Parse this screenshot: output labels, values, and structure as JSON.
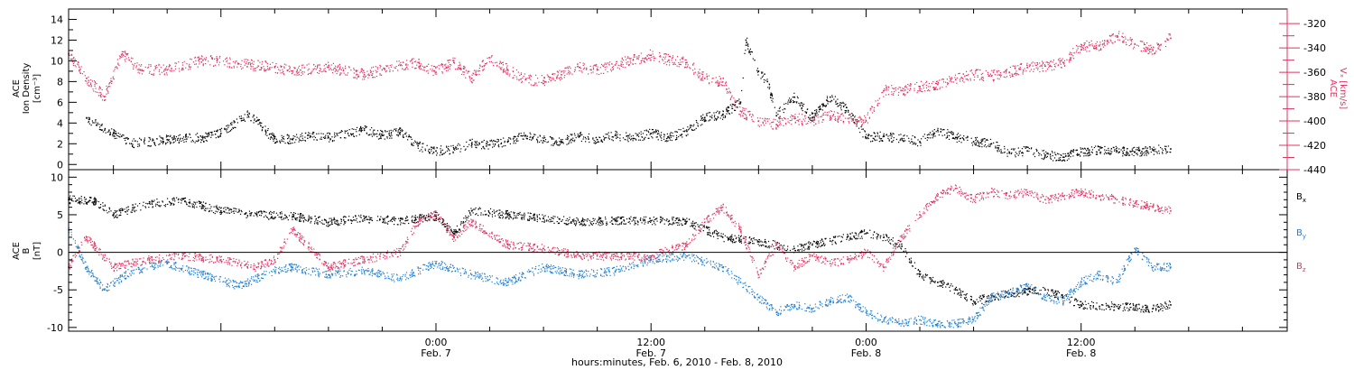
{
  "colors": {
    "black": "#000000",
    "pink": "#e0335f",
    "blue": "#1f7fd6"
  },
  "x_axis": {
    "title": "hours:minutes, Feb.  6, 2010 - Feb.  8, 2010",
    "range_hours": [
      -20.5,
      47.5
    ],
    "major_ticks": [
      {
        "hour": 0,
        "time": "0:00",
        "date": "Feb. 7"
      },
      {
        "hour": 12,
        "time": "12:00",
        "date": "Feb. 7"
      },
      {
        "hour": 24,
        "time": "0:00",
        "date": "Feb. 8"
      },
      {
        "hour": 36,
        "time": "12:00",
        "date": "Feb. 8"
      }
    ]
  },
  "chart_data": [
    {
      "type": "scatter",
      "panel": "top",
      "ylabel_left": {
        "line1": "ACE",
        "line2": "Ion Density",
        "units": "[cm⁻³]"
      },
      "ylabel_right": {
        "line1": "ACE",
        "line2": "Vₓ [km/s]"
      },
      "ylim_left": [
        -0.5,
        15
      ],
      "yticks_left": [
        "0",
        "2",
        "4",
        "6",
        "8",
        "10",
        "12",
        "14"
      ],
      "ylim_right": [
        -440,
        -308
      ],
      "yticks_right": [
        "-440",
        "-420",
        "-400",
        "-380",
        "-360",
        "-340",
        "-320"
      ],
      "series": [
        {
          "axis": "left",
          "color": "black",
          "x": [
            -19.5,
            -18,
            -17,
            -15,
            -13,
            -12,
            -10.5,
            -10,
            -9.5,
            -9,
            -8,
            -7,
            -6,
            -4,
            -3,
            -2,
            -1,
            0,
            1,
            2,
            3,
            4,
            5,
            6,
            7,
            8,
            9,
            10,
            11,
            12,
            13,
            14,
            15,
            16,
            17,
            17.3,
            18,
            18.5,
            19,
            20,
            21,
            22,
            23,
            24,
            25,
            26,
            27,
            28,
            29,
            30,
            31,
            32,
            33,
            34,
            35,
            36,
            37,
            38,
            39,
            40,
            41
          ],
          "y": [
            4.5,
            3,
            2,
            2.4,
            2.6,
            3,
            4.8,
            4.2,
            3.2,
            2.5,
            2.4,
            2.7,
            2.6,
            3.3,
            2.8,
            3.1,
            1.8,
            1.3,
            1.5,
            2,
            1.9,
            2.2,
            2.8,
            2.3,
            2.2,
            2.7,
            2.4,
            2.8,
            2.5,
            3,
            2.6,
            3.2,
            4.5,
            4.8,
            6,
            12,
            9,
            8,
            4.7,
            6.5,
            4.5,
            6.5,
            5.2,
            2.6,
            2.7,
            2.5,
            2.2,
            3.3,
            2.6,
            2.2,
            2,
            1.1,
            1.3,
            0.9,
            0.7,
            1.2,
            1.4,
            1.3,
            1.2,
            1.4,
            1.5
          ]
        },
        {
          "axis": "right",
          "color": "pink",
          "x": [
            -20.5,
            -19.5,
            -18.5,
            -17.5,
            -16.5,
            -15,
            -13,
            -11,
            -9,
            -8,
            -6,
            -4,
            -3,
            -1,
            0,
            1,
            2,
            3,
            4,
            5,
            6,
            7,
            8,
            9,
            10,
            11,
            12,
            13,
            14,
            15,
            16,
            17,
            18,
            19,
            20,
            21,
            22,
            23,
            24,
            25,
            26,
            27,
            28,
            29,
            30,
            31,
            32,
            33,
            34,
            35,
            36,
            37,
            38,
            39,
            40,
            41
          ],
          "y": [
            -345,
            -365,
            -380,
            -345,
            -358,
            -358,
            -350,
            -353,
            -356,
            -359,
            -356,
            -362,
            -358,
            -352,
            -360,
            -352,
            -365,
            -348,
            -358,
            -366,
            -367,
            -362,
            -356,
            -358,
            -354,
            -350,
            -346,
            -350,
            -352,
            -365,
            -368,
            -392,
            -400,
            -403,
            -398,
            -400,
            -396,
            -398,
            -400,
            -375,
            -375,
            -372,
            -370,
            -366,
            -362,
            -363,
            -360,
            -356,
            -355,
            -352,
            -339,
            -338,
            -330,
            -337,
            -342,
            -332
          ]
        }
      ]
    },
    {
      "type": "scatter",
      "panel": "bottom",
      "ylabel_left": {
        "line1": "ACE",
        "line2": "B",
        "units": "[nT]"
      },
      "ylim": [
        -10.5,
        11
      ],
      "yticks": [
        "10",
        "5",
        "0",
        "-5",
        "-10"
      ],
      "series": [
        {
          "name": "Bx",
          "color": "black",
          "x": [
            -20.5,
            -19,
            -18,
            -16,
            -14,
            -12,
            -10,
            -8,
            -6,
            -4,
            -2,
            0,
            1,
            2,
            4,
            6,
            8,
            10,
            12,
            14,
            16,
            18,
            20,
            22,
            24,
            25,
            26,
            27,
            28,
            29,
            30,
            31,
            32,
            34,
            36,
            38,
            40,
            41
          ],
          "y": [
            7,
            6.8,
            5,
            6.5,
            6.8,
            5.5,
            5,
            4.8,
            4,
            4.5,
            4.2,
            4.8,
            2.5,
            5.5,
            5,
            4.5,
            4,
            4.2,
            4.2,
            4.1,
            2,
            1.4,
            0.5,
            1.5,
            2.5,
            2,
            0.8,
            -3,
            -4,
            -5,
            -6.5,
            -6,
            -5.5,
            -5,
            -7,
            -7.2,
            -7.5,
            -7
          ]
        },
        {
          "name": "By",
          "color": "blue",
          "x": [
            -20.5,
            -19.5,
            -18.5,
            -17,
            -15,
            -13,
            -11,
            -9,
            -8,
            -6,
            -4,
            -2,
            0,
            2,
            4,
            6,
            8,
            10,
            12,
            14,
            16,
            17,
            18,
            19,
            20,
            21,
            22,
            23,
            24,
            25,
            26,
            27,
            28,
            29,
            30,
            31,
            32,
            33,
            34,
            35,
            36,
            37,
            38,
            39,
            40,
            41
          ],
          "y": [
            3,
            -2,
            -5,
            -2.5,
            -1.5,
            -3,
            -4.5,
            -2.5,
            -2,
            -3,
            -2.5,
            -3.5,
            -1.5,
            -3,
            -4,
            -2,
            -3,
            -2.5,
            -1,
            -0.5,
            -2,
            -4,
            -6,
            -8,
            -7,
            -7.5,
            -6.5,
            -6,
            -8,
            -9,
            -9.5,
            -9,
            -9.5,
            -9.5,
            -9,
            -6,
            -5.5,
            -4.5,
            -6,
            -6.5,
            -4,
            -3,
            -4,
            0.5,
            -2,
            -2
          ]
        },
        {
          "name": "Bz",
          "color": "pink",
          "x": [
            -20.5,
            -19.5,
            -18,
            -16,
            -14,
            -12,
            -10,
            -9,
            -8,
            -6,
            -4,
            -2,
            -1,
            0,
            1,
            2,
            4,
            6,
            8,
            10,
            12,
            14,
            15,
            16,
            17,
            18,
            19,
            20,
            21,
            22,
            23,
            24,
            25,
            26,
            27,
            28,
            29,
            30,
            31,
            32,
            33,
            34,
            35,
            36,
            37,
            38,
            39,
            40,
            41
          ],
          "y": [
            -2,
            2,
            -2,
            -1,
            -0.5,
            -1,
            -2,
            -1,
            3,
            -2,
            -1,
            0,
            4,
            5,
            2,
            4,
            1,
            0.5,
            -0.5,
            -0.5,
            -0.5,
            1,
            4,
            6,
            3,
            -3,
            1,
            -2,
            -0.5,
            -1.5,
            -1,
            0,
            -2,
            2,
            5,
            7.5,
            8.5,
            7,
            8,
            7.5,
            8,
            7,
            7.5,
            8,
            7.5,
            7,
            6.5,
            6,
            5.5
          ]
        }
      ]
    }
  ],
  "legend": [
    {
      "label": "B",
      "sub": "x",
      "color": "black"
    },
    {
      "label": "B",
      "sub": "y",
      "color": "blue"
    },
    {
      "label": "B",
      "sub": "z",
      "color": "pink"
    }
  ]
}
